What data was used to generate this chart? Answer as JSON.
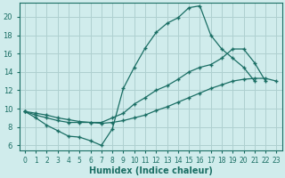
{
  "xlabel": "Humidex (Indice chaleur)",
  "bg_color": "#d0ecec",
  "grid_color": "#aed0d0",
  "line_color": "#1a6e64",
  "xlim": [
    -0.5,
    23.5
  ],
  "ylim": [
    5.5,
    21.5
  ],
  "xticks": [
    0,
    1,
    2,
    3,
    4,
    5,
    6,
    7,
    8,
    9,
    10,
    11,
    12,
    13,
    14,
    15,
    16,
    17,
    18,
    19,
    20,
    21,
    22,
    23
  ],
  "yticks": [
    6,
    8,
    10,
    12,
    14,
    16,
    18,
    20
  ],
  "curve1_x": [
    0,
    1,
    2,
    3,
    4,
    5,
    6,
    7,
    8,
    9,
    10,
    11,
    12,
    13,
    14,
    15,
    16,
    17,
    18,
    19,
    20,
    21
  ],
  "curve1_y": [
    9.7,
    9.0,
    8.2,
    7.6,
    7.0,
    6.9,
    6.5,
    6.0,
    7.8,
    12.2,
    14.5,
    16.6,
    18.3,
    19.3,
    19.9,
    21.0,
    21.2,
    18.0,
    16.5,
    15.5,
    14.5,
    13.0
  ],
  "curve2_x": [
    0,
    1,
    2,
    3,
    4,
    5,
    6,
    7,
    8,
    9,
    10,
    11,
    12,
    13,
    14,
    15,
    16,
    17,
    18,
    19,
    20,
    21,
    22
  ],
  "curve2_y": [
    9.7,
    9.3,
    9.0,
    8.7,
    8.5,
    8.5,
    8.5,
    8.5,
    9.0,
    9.5,
    10.5,
    11.2,
    12.0,
    12.5,
    13.2,
    14.0,
    14.5,
    14.8,
    15.5,
    16.5,
    16.5,
    15.0,
    13.0
  ],
  "curve3_x": [
    0,
    1,
    2,
    3,
    4,
    5,
    6,
    7,
    8,
    9,
    10,
    11,
    12,
    13,
    14,
    15,
    16,
    17,
    18,
    19,
    20,
    21,
    22,
    23
  ],
  "curve3_y": [
    9.7,
    9.5,
    9.3,
    9.0,
    8.8,
    8.6,
    8.5,
    8.4,
    8.5,
    8.7,
    9.0,
    9.3,
    9.8,
    10.2,
    10.7,
    11.2,
    11.7,
    12.2,
    12.6,
    13.0,
    13.2,
    13.3,
    13.3,
    13.0
  ]
}
